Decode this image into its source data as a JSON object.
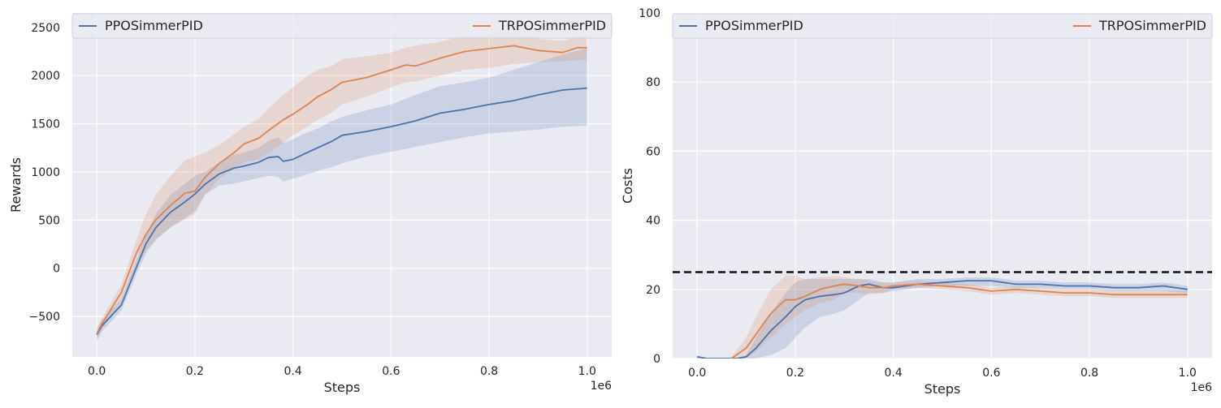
{
  "chart_data": [
    {
      "type": "line",
      "xlabel": "Steps",
      "ylabel": "Rewards",
      "x_offset_label": "1e6",
      "xlim": [
        -0.05,
        1.05
      ],
      "ylim": [
        -920,
        2650
      ],
      "xticks": [
        0.0,
        0.2,
        0.4,
        0.6,
        0.8,
        1.0
      ],
      "xtick_labels": [
        "0.0",
        "0.2",
        "0.4",
        "0.6",
        "0.8",
        "1.0"
      ],
      "yticks": [
        -500,
        0,
        500,
        1000,
        1500,
        2000,
        2500
      ],
      "ytick_labels": [
        "−500",
        "0",
        "500",
        "1000",
        "1500",
        "2000",
        "2500"
      ],
      "grid": true,
      "legend": "top",
      "series": [
        {
          "name": "PPOSimmerPID",
          "color": "#4c72b0",
          "x": [
            0.0,
            0.01,
            0.05,
            0.08,
            0.1,
            0.12,
            0.15,
            0.18,
            0.2,
            0.22,
            0.25,
            0.28,
            0.3,
            0.33,
            0.35,
            0.37,
            0.38,
            0.4,
            0.42,
            0.45,
            0.48,
            0.5,
            0.55,
            0.6,
            0.65,
            0.7,
            0.75,
            0.8,
            0.85,
            0.9,
            0.95,
            1.0
          ],
          "y": [
            -690,
            -600,
            -380,
            0,
            250,
            420,
            580,
            690,
            770,
            870,
            980,
            1040,
            1060,
            1100,
            1150,
            1160,
            1110,
            1130,
            1180,
            1250,
            1320,
            1380,
            1420,
            1470,
            1530,
            1610,
            1650,
            1700,
            1740,
            1800,
            1850,
            1870
          ],
          "lower": [
            -760,
            -660,
            -440,
            -70,
            150,
            290,
            420,
            520,
            590,
            760,
            860,
            880,
            900,
            940,
            960,
            950,
            900,
            930,
            960,
            1010,
            1050,
            1090,
            1160,
            1210,
            1260,
            1310,
            1360,
            1400,
            1420,
            1440,
            1470,
            1480
          ],
          "upper": [
            -630,
            -540,
            -320,
            70,
            350,
            560,
            760,
            880,
            960,
            1000,
            1100,
            1180,
            1200,
            1250,
            1320,
            1360,
            1300,
            1340,
            1390,
            1450,
            1530,
            1570,
            1640,
            1700,
            1800,
            1890,
            1930,
            1980,
            2060,
            2140,
            2220,
            2280
          ]
        },
        {
          "name": "TRPOSimmerPID",
          "color": "#dd8452",
          "x": [
            0.0,
            0.01,
            0.05,
            0.08,
            0.1,
            0.12,
            0.15,
            0.18,
            0.2,
            0.22,
            0.25,
            0.28,
            0.3,
            0.33,
            0.35,
            0.38,
            0.4,
            0.43,
            0.45,
            0.48,
            0.5,
            0.55,
            0.6,
            0.63,
            0.65,
            0.7,
            0.75,
            0.8,
            0.85,
            0.9,
            0.95,
            0.98,
            1.0
          ],
          "y": [
            -680,
            -580,
            -250,
            150,
            350,
            500,
            650,
            780,
            800,
            940,
            1090,
            1200,
            1290,
            1350,
            1430,
            1540,
            1600,
            1700,
            1780,
            1860,
            1930,
            1980,
            2060,
            2110,
            2100,
            2180,
            2250,
            2280,
            2310,
            2260,
            2240,
            2290,
            2290
          ],
          "lower": [
            -740,
            -640,
            -330,
            20,
            180,
            300,
            430,
            510,
            560,
            760,
            930,
            1030,
            1100,
            1130,
            1200,
            1300,
            1380,
            1470,
            1540,
            1620,
            1700,
            1780,
            1880,
            1930,
            1940,
            2000,
            2060,
            2080,
            2120,
            2140,
            2150,
            2160,
            2170
          ],
          "upper": [
            -620,
            -520,
            -170,
            290,
            560,
            760,
            960,
            1120,
            1160,
            1200,
            1280,
            1390,
            1470,
            1550,
            1660,
            1800,
            1880,
            2000,
            2060,
            2100,
            2170,
            2200,
            2240,
            2290,
            2310,
            2350,
            2410,
            2430,
            2450,
            2380,
            2360,
            2400,
            2420
          ]
        }
      ]
    },
    {
      "type": "line",
      "xlabel": "Steps",
      "ylabel": "Costs",
      "x_offset_label": "1e6",
      "xlim": [
        -0.05,
        1.05
      ],
      "ylim": [
        0,
        100
      ],
      "xticks": [
        0.0,
        0.2,
        0.4,
        0.6,
        0.8,
        1.0
      ],
      "xtick_labels": [
        "0.0",
        "0.2",
        "0.4",
        "0.6",
        "0.8",
        "1.0"
      ],
      "yticks": [
        0,
        20,
        40,
        60,
        80,
        100
      ],
      "ytick_labels": [
        "0",
        "20",
        "40",
        "60",
        "80",
        "100"
      ],
      "grid": true,
      "legend": "top",
      "threshold": {
        "y": 25,
        "color": "#111111",
        "style": "dashed"
      },
      "series": [
        {
          "name": "PPOSimmerPID",
          "color": "#4c72b0",
          "x": [
            0.0,
            0.02,
            0.05,
            0.08,
            0.1,
            0.12,
            0.15,
            0.18,
            0.2,
            0.22,
            0.25,
            0.28,
            0.3,
            0.33,
            0.35,
            0.38,
            0.4,
            0.45,
            0.5,
            0.55,
            0.6,
            0.65,
            0.7,
            0.75,
            0.8,
            0.85,
            0.9,
            0.95,
            1.0
          ],
          "y": [
            0.5,
            0,
            0,
            0,
            0.5,
            3,
            8,
            12,
            15,
            17,
            18,
            18.5,
            19,
            21,
            21.5,
            20.5,
            20.5,
            21.5,
            22,
            22.5,
            22.5,
            21.5,
            21.5,
            21,
            21,
            20.5,
            20.5,
            21,
            20
          ],
          "lower": [
            0,
            0,
            0,
            0,
            0,
            0,
            1,
            3,
            6,
            9,
            12,
            13,
            14,
            17,
            19,
            19,
            19.5,
            20.5,
            21,
            21,
            21,
            20.5,
            20.5,
            20,
            20,
            19.5,
            19.5,
            19.5,
            19
          ],
          "upper": [
            1,
            0,
            0,
            0,
            1,
            6,
            13,
            19,
            22,
            23,
            23,
            23,
            23,
            23,
            23,
            22,
            22,
            23,
            23,
            23.5,
            23.5,
            22.5,
            22.5,
            22,
            22,
            21.5,
            21.5,
            22,
            21
          ]
        },
        {
          "name": "TRPOSimmerPID",
          "color": "#dd8452",
          "x": [
            0.07,
            0.1,
            0.12,
            0.15,
            0.18,
            0.2,
            0.22,
            0.25,
            0.28,
            0.3,
            0.33,
            0.35,
            0.38,
            0.4,
            0.45,
            0.5,
            0.55,
            0.6,
            0.65,
            0.7,
            0.75,
            0.8,
            0.85,
            0.9,
            0.95,
            1.0
          ],
          "y": [
            0,
            3,
            7,
            13,
            17,
            17,
            18,
            20,
            21,
            21.5,
            21,
            20.5,
            20.5,
            21,
            21.5,
            21,
            20.5,
            19.5,
            20,
            19.5,
            19,
            19,
            18.5,
            18.5,
            18.5,
            18.5
          ],
          "lower": [
            0,
            0,
            2,
            6,
            10,
            12,
            14,
            16,
            17,
            19,
            19,
            18.5,
            19,
            20,
            20.5,
            20,
            19.5,
            18.5,
            19,
            18.5,
            18,
            18,
            17.5,
            17.5,
            17.5,
            17.5
          ],
          "upper": [
            0.5,
            6,
            12,
            20,
            24,
            24,
            23,
            23.5,
            24,
            23.5,
            23,
            22.5,
            22,
            22,
            22.5,
            22,
            21.5,
            20.5,
            21,
            20.5,
            20,
            20,
            19.5,
            19.5,
            19.5,
            19.5
          ]
        }
      ]
    }
  ]
}
